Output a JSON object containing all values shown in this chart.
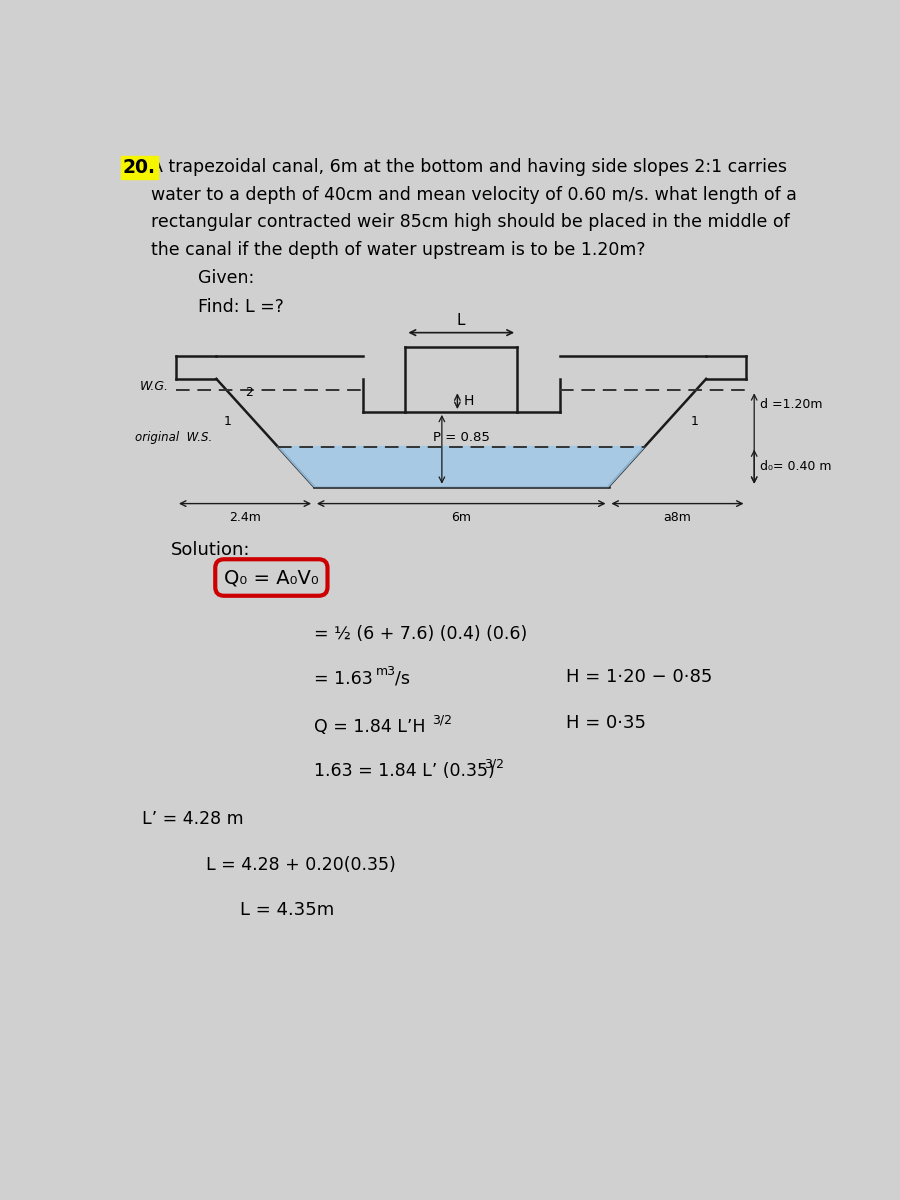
{
  "bg_color": "#d0d0d0",
  "title_number": "20.",
  "title_highlight_color": "#f5f500",
  "problem_line1": "A trapezoidal canal, 6m at the bottom and having side slopes 2:1 carries",
  "problem_line2": "water to a depth of 40cm and mean velocity of 0.60 m/s. what length of a",
  "problem_line3": "rectangular contracted weir 85cm high should be placed in the middle of",
  "problem_line4": "the canal if the depth of water upstream is to be 1.20m?",
  "given_label": "Given:",
  "find_label": "Find: L =?",
  "solution_label": "Solution:",
  "eq2": "= ½ (6 + 7.6) (0.4) (0.6)",
  "eq3_main": "= 1.63",
  "eq3_sup": "m3",
  "eq3_sub": "/s",
  "eq4": "Q = 1.84 L’H",
  "eq4_sup": "3/2",
  "eq5": "1.63 = 1.84 L’ (0.35)",
  "eq5_sup": "3/2",
  "eq6": "L’ = 4.28 m",
  "eq7": "L = 4.28 + 0.20(0.35)",
  "eq8": "L = 4.35m",
  "side_eq1": "H = 1·20 − 0·85",
  "side_eq2": "H = 0·35",
  "water_color": "#9ec8e8",
  "diagram_line_color": "#1a1a1a",
  "dashed_color": "#333333",
  "label_2_4m": "2.4m",
  "label_6m": "6m",
  "label_a8m": "a8m",
  "label_L": "L",
  "label_H": "H",
  "label_P": "P = 0.85",
  "label_d": "d =1.20m",
  "label_do": "d₀= 0.40 m",
  "label_wg": "W.G.",
  "label_orig": "original  W.S.",
  "label_slope_2": "2",
  "label_slope_1_left": "1",
  "label_slope_1_right": "1",
  "weir_highlight_color": "#cc0000",
  "eq1_box": "Q₀ = A₀V₀"
}
